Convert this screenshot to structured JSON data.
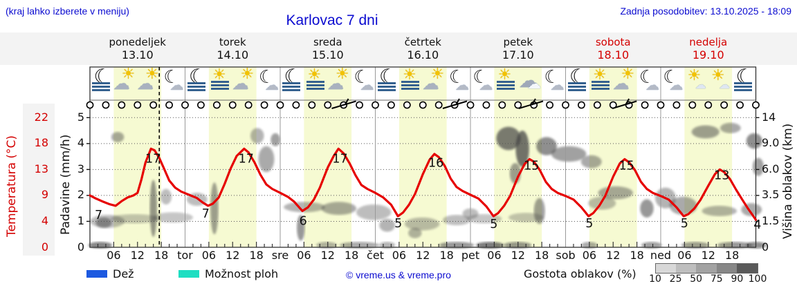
{
  "header": {
    "left_note": "(kraj lahko izberete v meniju)",
    "title": "Karlovac 7 dni",
    "updated": "Zadnja posodobitev: 13.10.2025 - 18:09"
  },
  "colors": {
    "blue_text": "#0b0bd0",
    "red_text": "#d40000",
    "curve_red": "#e60000",
    "daylight_band": "#f6fad2",
    "rain_swatch": "#1c59e0",
    "showers_swatch": "#1edec2",
    "cloud_gray": "#444444"
  },
  "days": [
    {
      "name": "ponedeljek",
      "date": "13.10",
      "color": "#111111"
    },
    {
      "name": "torek",
      "date": "14.10",
      "color": "#111111"
    },
    {
      "name": "sreda",
      "date": "15.10",
      "color": "#111111"
    },
    {
      "name": "četrtek",
      "date": "16.10",
      "color": "#111111"
    },
    {
      "name": "petek",
      "date": "17.10",
      "color": "#111111"
    },
    {
      "name": "sobota",
      "date": "18.10",
      "color": "#d40000"
    },
    {
      "name": "nedelja",
      "date": "19.10",
      "color": "#d40000"
    }
  ],
  "axes": {
    "temp_label": "Temperatura (°C)",
    "temp_ticks": [
      "22",
      "18",
      "13",
      "9",
      "4",
      "0"
    ],
    "precip_label": "Padavine (mm/h)",
    "precip_ticks": [
      "5",
      "4",
      "3",
      "2",
      "1",
      "0"
    ],
    "cloud_label": "Višina oblakov (km)",
    "cloud_ticks": [
      "14",
      "9.0",
      "6.0",
      "3.5",
      "1.5",
      "0"
    ],
    "hour_labels": [
      "06",
      "12",
      "18"
    ],
    "day_abbrevs": [
      "tor",
      "sre",
      "čet",
      "pet",
      "sob",
      "ned"
    ]
  },
  "legend": {
    "rain_label": "Dež",
    "showers_label": "Možnost ploh",
    "copyright": "© vreme.us & vreme.pro",
    "cloud_density_label": "Gostota oblakov (%)",
    "density_ticks": [
      "10",
      "25",
      "50",
      "75",
      "90",
      "100"
    ],
    "density_colors": [
      "#d8d8d8",
      "#bebebe",
      "#a2a2a2",
      "#878787",
      "#5a5a5a"
    ]
  },
  "chart_data": {
    "type": "line",
    "title": "Karlovac 7 dni",
    "x_unit": "hours from Monday 00:00",
    "x_range": [
      0,
      168
    ],
    "daylight_hours": [
      6,
      18
    ],
    "now_hour": 17.5,
    "temp_axis_anchors": [
      [
        0,
        0
      ],
      [
        4,
        1
      ],
      [
        9,
        2
      ],
      [
        13,
        3
      ],
      [
        18,
        4
      ],
      [
        22,
        5
      ]
    ],
    "precip_axis_range": [
      0,
      5.5
    ],
    "cloud_height_km_ticks": [
      [
        0,
        0
      ],
      [
        1.5,
        1
      ],
      [
        3.5,
        2
      ],
      [
        6.0,
        3
      ],
      [
        9.0,
        4
      ],
      [
        14,
        5
      ]
    ],
    "temperature_c": [
      [
        0,
        9
      ],
      [
        1.5,
        8.4
      ],
      [
        3,
        7.9
      ],
      [
        5,
        7.3
      ],
      [
        6.5,
        7
      ],
      [
        8,
        7.9
      ],
      [
        9.5,
        8.6
      ],
      [
        11,
        9
      ],
      [
        12,
        9.4
      ],
      [
        13,
        11.5
      ],
      [
        14,
        14.3
      ],
      [
        15.4,
        17
      ],
      [
        16.3,
        16.7
      ],
      [
        17.5,
        15.2
      ],
      [
        18.5,
        13.5
      ],
      [
        20,
        11.3
      ],
      [
        21.5,
        10.2
      ],
      [
        23,
        9.6
      ],
      [
        25,
        9.1
      ],
      [
        27,
        8.5
      ],
      [
        28.5,
        7.6
      ],
      [
        29.8,
        7
      ],
      [
        31,
        7.4
      ],
      [
        32.5,
        8.6
      ],
      [
        34,
        10.8
      ],
      [
        35.5,
        13.2
      ],
      [
        37,
        15.6
      ],
      [
        38.9,
        17
      ],
      [
        40,
        16.3
      ],
      [
        41.5,
        14.4
      ],
      [
        43,
        12.2
      ],
      [
        44.5,
        10.7
      ],
      [
        46,
        10
      ],
      [
        48,
        9.4
      ],
      [
        50,
        8.7
      ],
      [
        51.5,
        7.8
      ],
      [
        53.6,
        6
      ],
      [
        55,
        6.7
      ],
      [
        56.5,
        8.2
      ],
      [
        58,
        10.2
      ],
      [
        60,
        13.4
      ],
      [
        61.5,
        15.6
      ],
      [
        62.7,
        17
      ],
      [
        64,
        16.1
      ],
      [
        65.5,
        14.2
      ],
      [
        67,
        12.1
      ],
      [
        68.5,
        10.6
      ],
      [
        70,
        10
      ],
      [
        72,
        9.4
      ],
      [
        74,
        8.6
      ],
      [
        76,
        7.2
      ],
      [
        77.7,
        5
      ],
      [
        79,
        5.7
      ],
      [
        80.5,
        7.2
      ],
      [
        82,
        9.2
      ],
      [
        84,
        12.3
      ],
      [
        85.7,
        14.9
      ],
      [
        86.9,
        16
      ],
      [
        88,
        15.4
      ],
      [
        89.5,
        13.7
      ],
      [
        91,
        11.6
      ],
      [
        92.5,
        10.3
      ],
      [
        94,
        9.7
      ],
      [
        96,
        9.1
      ],
      [
        98,
        8.4
      ],
      [
        100,
        6.9
      ],
      [
        101.8,
        5
      ],
      [
        103,
        5.6
      ],
      [
        104.5,
        7
      ],
      [
        106,
        8.9
      ],
      [
        108,
        11.9
      ],
      [
        109.7,
        14.1
      ],
      [
        110.9,
        15
      ],
      [
        112,
        14.5
      ],
      [
        113.5,
        12.9
      ],
      [
        115,
        11.1
      ],
      [
        116.5,
        10
      ],
      [
        118,
        9.4
      ],
      [
        120,
        8.9
      ],
      [
        122,
        8.2
      ],
      [
        124,
        6.7
      ],
      [
        125.8,
        5
      ],
      [
        127,
        5.6
      ],
      [
        128.5,
        7
      ],
      [
        130,
        8.9
      ],
      [
        132,
        11.9
      ],
      [
        133.7,
        14.2
      ],
      [
        134.9,
        15
      ],
      [
        136,
        14.4
      ],
      [
        137.5,
        12.9
      ],
      [
        139,
        11.1
      ],
      [
        140.5,
        10
      ],
      [
        142,
        9.4
      ],
      [
        144,
        8.9
      ],
      [
        146,
        8.2
      ],
      [
        148,
        6.7
      ],
      [
        149.8,
        5
      ],
      [
        151,
        5.4
      ],
      [
        152.5,
        6.5
      ],
      [
        154,
        8.1
      ],
      [
        156,
        10.5
      ],
      [
        157.7,
        12.3
      ],
      [
        158.9,
        13
      ],
      [
        160,
        12.6
      ],
      [
        161.5,
        11.5
      ],
      [
        163,
        9.9
      ],
      [
        164.5,
        8.3
      ],
      [
        166,
        6.5
      ],
      [
        167.2,
        5.2
      ],
      [
        168,
        4.3
      ]
    ],
    "curve_labels": [
      [
        2.2,
        1.25,
        "7"
      ],
      [
        15.9,
        3.42,
        "17"
      ],
      [
        29.2,
        1.3,
        "7"
      ],
      [
        39.4,
        3.42,
        "17"
      ],
      [
        53.8,
        1.02,
        "6"
      ],
      [
        63.1,
        3.42,
        "17"
      ],
      [
        77.8,
        0.93,
        "5"
      ],
      [
        87.3,
        3.26,
        "16"
      ],
      [
        101.9,
        0.9,
        "5"
      ],
      [
        111.4,
        3.15,
        "15"
      ],
      [
        126,
        0.93,
        "5"
      ],
      [
        135.4,
        3.15,
        "15"
      ],
      [
        150,
        0.93,
        "5"
      ],
      [
        159.4,
        2.78,
        "13"
      ],
      [
        168.4,
        0.88,
        "4"
      ]
    ],
    "wind": {
      "circle_step_h": 4,
      "barb_hours": [
        64.5,
        92.5,
        111.7,
        135.3
      ]
    },
    "weather_icons": [
      "moon-fog",
      "sun-cloud",
      "sun-cloud",
      "moon-cloud",
      "moon-fog",
      "sun-fog",
      "sun-cloud",
      "moon-cloud",
      "moon-fog",
      "sun-fog",
      "sun-cloud",
      "moon-cloud",
      "moon-fog",
      "sun-fog",
      "sun-cloud",
      "moon-cloud",
      "moon-cloud",
      "sun-fog",
      "cloud-big",
      "moon-cloud",
      "moon-fog",
      "sun-fog",
      "sun-cloud",
      "moon-cloud",
      "moon-cloud",
      "sun-smallcloud",
      "sun-smallcloud",
      "moon-fog"
    ],
    "clouds": [
      [
        4.4,
        1.0,
        4.4,
        0.25,
        0.35
      ],
      [
        3.5,
        0.95,
        2,
        0.2,
        0.5
      ],
      [
        7,
        4.25,
        1.6,
        0.2,
        0.45
      ],
      [
        11.3,
        1.1,
        6,
        0.18,
        0.3
      ],
      [
        21,
        1.15,
        5,
        0.2,
        0.3
      ],
      [
        16,
        1.5,
        0.9,
        1.1,
        0.55
      ],
      [
        19.2,
        1.95,
        1.4,
        0.3,
        0.35
      ],
      [
        31.4,
        1.5,
        1,
        1.0,
        0.5
      ],
      [
        27,
        1.85,
        2.6,
        0.25,
        0.35
      ],
      [
        44.5,
        3.4,
        2,
        0.5,
        0.45
      ],
      [
        42.2,
        4.3,
        1.7,
        0.3,
        0.4
      ],
      [
        46.8,
        4.15,
        1.2,
        0.25,
        0.5
      ],
      [
        54.1,
        1.55,
        5.2,
        0.2,
        0.4
      ],
      [
        62.8,
        1.5,
        4.4,
        0.25,
        0.45
      ],
      [
        71.6,
        1.35,
        4.4,
        0.3,
        0.35
      ],
      [
        75,
        0.85,
        2,
        0.25,
        0.4
      ],
      [
        83.8,
        0.9,
        4.4,
        0.25,
        0.35
      ],
      [
        82,
        0.55,
        1.7,
        0.2,
        0.4
      ],
      [
        53.2,
        0.75,
        1,
        0.5,
        0.55
      ],
      [
        92.5,
        1.05,
        3.5,
        0.2,
        0.35
      ],
      [
        96,
        1.3,
        2,
        0.2,
        0.35
      ],
      [
        105.6,
        4.2,
        3.1,
        0.45,
        0.7
      ],
      [
        109.1,
        3.8,
        1.7,
        0.7,
        0.75
      ],
      [
        115.2,
        3.9,
        2.6,
        0.35,
        0.6
      ],
      [
        120.8,
        3.6,
        4.4,
        0.3,
        0.5
      ],
      [
        126.5,
        3.3,
        2.6,
        0.25,
        0.45
      ],
      [
        107.3,
        2.85,
        1.4,
        0.4,
        0.5
      ],
      [
        113.4,
        1.4,
        1.4,
        0.5,
        0.5
      ],
      [
        99.5,
        1.1,
        4.4,
        0.18,
        0.3
      ],
      [
        110,
        1.15,
        4.4,
        0.18,
        0.3
      ],
      [
        132.6,
        2.1,
        4.4,
        0.25,
        0.45
      ],
      [
        129.2,
        1.7,
        3.5,
        0.25,
        0.35
      ],
      [
        140.5,
        1.5,
        1.7,
        0.35,
        0.55
      ],
      [
        145.2,
        1.9,
        2.6,
        0.4,
        0.4
      ],
      [
        149.7,
        1.6,
        3.5,
        0.35,
        0.45
      ],
      [
        155.3,
        4.45,
        3.5,
        0.25,
        0.5
      ],
      [
        161.6,
        4.6,
        2.6,
        0.2,
        0.45
      ],
      [
        167.6,
        4.1,
        2,
        0.3,
        0.6
      ],
      [
        158.8,
        1.4,
        4.4,
        0.2,
        0.4
      ],
      [
        166.9,
        1.45,
        2.6,
        0.25,
        0.45
      ],
      [
        168.6,
        3.1,
        1.4,
        0.35,
        0.5
      ],
      [
        2.6,
        0.08,
        3,
        0.13,
        0.65
      ],
      [
        68,
        0.08,
        5,
        0.13,
        0.45
      ],
      [
        92.5,
        0.08,
        4.4,
        0.13,
        0.55
      ],
      [
        100.9,
        0.08,
        3.5,
        0.13,
        0.7
      ],
      [
        107.9,
        0.08,
        3.5,
        0.13,
        0.55
      ],
      [
        126,
        0.08,
        2,
        0.13,
        0.45
      ],
      [
        141.7,
        0.08,
        2.6,
        0.13,
        0.5
      ],
      [
        152.7,
        0.08,
        3.5,
        0.13,
        0.5
      ],
      [
        162.7,
        0.08,
        4.4,
        0.13,
        0.55
      ],
      [
        168.1,
        0.08,
        2.6,
        0.13,
        0.6
      ],
      [
        59.7,
        0.08,
        2.6,
        0.13,
        0.4
      ],
      [
        75,
        0.08,
        2,
        0.13,
        0.4
      ]
    ]
  }
}
